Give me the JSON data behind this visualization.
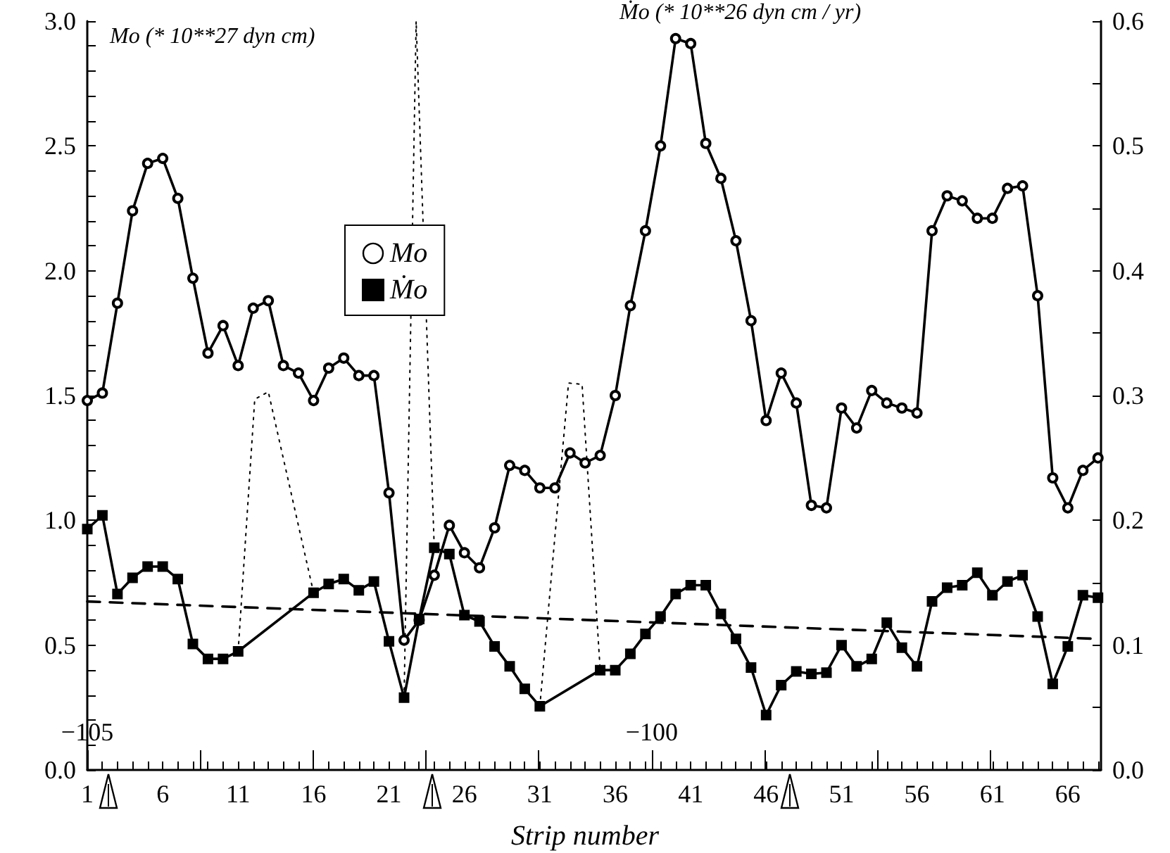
{
  "chart_data": {
    "type": "line",
    "xlabel": "Strip number",
    "ylabel": "Mo (* 10**27 dyn cm)",
    "y2label": "Ṁo (* 10**26 dyn cm / yr)",
    "x": [
      1,
      2,
      3,
      4,
      5,
      6,
      7,
      8,
      9,
      10,
      11,
      12,
      13,
      14,
      15,
      16,
      17,
      18,
      19,
      20,
      21,
      22,
      23,
      24,
      25,
      26,
      27,
      28,
      29,
      30,
      31,
      32,
      33,
      34,
      35,
      36,
      37,
      38,
      39,
      40,
      41,
      42,
      43,
      44,
      45,
      46,
      47,
      48,
      49,
      50,
      51,
      52,
      53,
      54,
      55,
      56,
      57,
      58,
      59,
      60,
      61,
      62,
      63,
      64,
      65,
      66,
      67,
      68
    ],
    "series": [
      {
        "name": "Mo",
        "color": "#000000",
        "marker": "circle",
        "values": [
          1.48,
          1.51,
          1.87,
          2.24,
          2.43,
          2.45,
          2.29,
          1.97,
          1.67,
          1.78,
          1.62,
          1.85,
          1.88,
          1.62,
          1.59,
          1.48,
          1.61,
          1.65,
          1.58,
          1.58,
          1.11,
          0.52,
          0.6,
          0.78,
          0.98,
          0.87,
          0.81,
          0.97,
          1.22,
          1.2,
          1.13,
          1.13,
          1.27,
          1.23,
          1.26,
          1.5,
          1.86,
          2.16,
          2.5,
          2.93,
          2.91,
          2.51,
          2.37,
          2.12,
          1.8,
          1.4,
          1.59,
          1.47,
          1.06,
          1.05,
          1.45,
          1.37,
          1.52,
          1.47,
          1.45,
          1.43,
          2.16,
          2.3,
          2.28,
          2.21,
          2.21,
          2.33,
          2.34,
          1.9,
          1.17,
          1.05,
          1.2,
          1.25
        ]
      },
      {
        "name": "Ṁo",
        "color": "#000000",
        "marker": "square",
        "axis": "y2",
        "x": [
          1,
          2,
          3,
          4,
          5,
          6,
          7,
          8,
          9,
          10,
          11,
          16,
          17,
          18,
          19,
          20,
          21,
          22,
          23,
          24,
          25,
          26,
          27,
          28,
          29,
          30,
          31,
          35,
          36,
          37,
          38,
          39,
          40,
          41,
          42,
          43,
          44,
          45,
          46,
          47,
          48,
          49,
          50,
          51,
          52,
          53,
          54,
          55,
          56,
          57,
          58,
          59,
          60,
          61,
          62,
          63,
          64,
          65,
          66,
          67,
          68
        ],
        "values": [
          0.193,
          0.204,
          0.141,
          0.154,
          0.163,
          0.163,
          0.153,
          0.101,
          0.089,
          0.089,
          0.095,
          0.142,
          0.149,
          0.153,
          0.144,
          0.151,
          0.103,
          0.058,
          0.121,
          0.178,
          0.173,
          0.124,
          0.119,
          0.099,
          0.083,
          0.065,
          0.051,
          0.08,
          0.08,
          0.093,
          0.109,
          0.123,
          0.141,
          0.148,
          0.148,
          0.125,
          0.105,
          0.082,
          0.044,
          0.068,
          0.079,
          0.077,
          0.078,
          0.1,
          0.083,
          0.089,
          0.118,
          0.098,
          0.083,
          0.135,
          0.146,
          0.148,
          0.158,
          0.14,
          0.151,
          0.156,
          0.123,
          0.069,
          0.099,
          0.14,
          0.138
        ]
      },
      {
        "color": "#000000",
        "marker": "none",
        "line_style": "dashed",
        "axis": "y2",
        "x": [
          1,
          68
        ],
        "values": [
          0.135,
          0.105
        ]
      },
      {
        "color": "#000000",
        "marker": "none",
        "line_style": "dotted",
        "axis": "y2",
        "x": [
          11,
          12.1,
          13,
          16
        ],
        "values": [
          0.095,
          0.297,
          0.303,
          0.142
        ]
      },
      {
        "color": "#000000",
        "marker": "none",
        "line_style": "dotted",
        "axis": "y2",
        "x": [
          22,
          22.8,
          24
        ],
        "values": [
          0.058,
          0.6,
          0.178
        ]
      },
      {
        "color": "#000000",
        "marker": "none",
        "line_style": "dotted",
        "axis": "y2",
        "x": [
          31,
          32.9,
          33.8,
          35
        ],
        "values": [
          0.051,
          0.31,
          0.309,
          0.08
        ]
      }
    ],
    "xlim": [
      1,
      68.2
    ],
    "xticks": [
      1,
      {
        "value": 2,
        "label": null
      },
      {
        "value": 3,
        "label": null
      },
      {
        "value": 4,
        "label": null
      },
      {
        "value": 5,
        "label": null
      },
      6,
      {
        "value": 7,
        "label": null
      },
      {
        "value": 8,
        "label": null
      },
      {
        "value": 9,
        "label": null
      },
      {
        "value": 10,
        "label": null
      },
      11,
      {
        "value": 12,
        "label": null
      },
      {
        "value": 13,
        "label": null
      },
      {
        "value": 14,
        "label": null
      },
      {
        "value": 15,
        "label": null
      },
      16,
      {
        "value": 17,
        "label": null
      },
      {
        "value": 18,
        "label": null
      },
      {
        "value": 19,
        "label": null
      },
      {
        "value": 20,
        "label": null
      },
      21,
      {
        "value": 22,
        "label": null
      },
      {
        "value": 23,
        "label": null
      },
      {
        "value": 24,
        "label": null
      },
      {
        "value": 25,
        "label": null
      },
      26,
      {
        "value": 27,
        "label": null
      },
      {
        "value": 28,
        "label": null
      },
      {
        "value": 29,
        "label": null
      },
      {
        "value": 30,
        "label": null
      },
      31,
      {
        "value": 32,
        "label": null
      },
      {
        "value": 33,
        "label": null
      },
      {
        "value": 34,
        "label": null
      },
      {
        "value": 35,
        "label": null
      },
      36,
      {
        "value": 37,
        "label": null
      },
      {
        "value": 38,
        "label": null
      },
      {
        "value": 39,
        "label": null
      },
      {
        "value": 40,
        "label": null
      },
      41,
      {
        "value": 42,
        "label": null
      },
      {
        "value": 43,
        "label": null
      },
      {
        "value": 44,
        "label": null
      },
      {
        "value": 45,
        "label": null
      },
      46,
      {
        "value": 47,
        "label": null
      },
      {
        "value": 48,
        "label": null
      },
      {
        "value": 49,
        "label": null
      },
      {
        "value": 50,
        "label": null
      },
      51,
      {
        "value": 52,
        "label": null
      },
      {
        "value": 53,
        "label": null
      },
      {
        "value": 54,
        "label": null
      },
      {
        "value": 55,
        "label": null
      },
      56,
      {
        "value": 57,
        "label": null
      },
      {
        "value": 58,
        "label": null
      },
      {
        "value": 59,
        "label": null
      },
      {
        "value": 60,
        "label": null
      },
      61,
      {
        "value": 62,
        "label": null
      },
      {
        "value": 63,
        "label": null
      },
      {
        "value": 64,
        "label": null
      },
      {
        "value": 65,
        "label": null
      },
      66,
      {
        "value": 67,
        "label": null
      },
      {
        "value": 68,
        "label": null
      }
    ],
    "x2lim": [
      -105,
      -96.02
    ],
    "x2ticks": [
      {
        "value": -105,
        "label": "−105"
      },
      {
        "value": -104,
        "label": null
      },
      {
        "value": -103,
        "label": null
      },
      {
        "value": -102,
        "label": null
      },
      {
        "value": -101,
        "label": null
      },
      {
        "value": -100,
        "label": "−100"
      },
      {
        "value": -99,
        "label": null
      },
      {
        "value": -98,
        "label": null
      },
      {
        "value": -97,
        "label": null
      }
    ],
    "ylim": [
      0,
      3
    ],
    "yticks": [
      {
        "value": 0,
        "label": "0.0"
      },
      {
        "value": 0.1,
        "label": null
      },
      {
        "value": 0.2,
        "label": null
      },
      {
        "value": 0.3,
        "label": null
      },
      {
        "value": 0.4,
        "label": null
      },
      {
        "value": 0.5,
        "label": "0.5"
      },
      {
        "value": 0.6,
        "label": null
      },
      {
        "value": 0.7,
        "label": null
      },
      {
        "value": 0.8,
        "label": null
      },
      {
        "value": 0.9,
        "label": null
      },
      {
        "value": 1,
        "label": "1.0"
      },
      {
        "value": 1.1,
        "label": null
      },
      {
        "value": 1.2,
        "label": null
      },
      {
        "value": 1.3,
        "label": null
      },
      {
        "value": 1.4,
        "label": null
      },
      {
        "value": 1.5,
        "label": "1.5"
      },
      {
        "value": 1.6,
        "label": null
      },
      {
        "value": 1.7,
        "label": null
      },
      {
        "value": 1.8,
        "label": null
      },
      {
        "value": 1.9,
        "label": null
      },
      {
        "value": 2,
        "label": "2.0"
      },
      {
        "value": 2.1,
        "label": null
      },
      {
        "value": 2.2,
        "label": null
      },
      {
        "value": 2.3,
        "label": null
      },
      {
        "value": 2.4,
        "label": null
      },
      {
        "value": 2.5,
        "label": "2.5"
      },
      {
        "value": 2.6,
        "label": null
      },
      {
        "value": 2.7,
        "label": null
      },
      {
        "value": 2.8,
        "label": null
      },
      {
        "value": 2.9,
        "label": null
      },
      {
        "value": 3,
        "label": "3.0"
      }
    ],
    "y2lim": [
      0,
      0.6
    ],
    "y2ticks": [
      {
        "value": 0,
        "label": "0.0"
      },
      {
        "value": 0.05,
        "label": null
      },
      {
        "value": 0.1,
        "label": "0.1"
      },
      {
        "value": 0.15,
        "label": null
      },
      {
        "value": 0.2,
        "label": "0.2"
      },
      {
        "value": 0.25,
        "label": null
      },
      {
        "value": 0.3,
        "label": "0.3"
      },
      {
        "value": 0.35,
        "label": null
      },
      {
        "value": 0.4,
        "label": "0.4"
      },
      {
        "value": 0.45,
        "label": null
      },
      {
        "value": 0.5,
        "label": "0.5"
      },
      {
        "value": 0.55,
        "label": null
      },
      {
        "value": 0.6,
        "label": "0.6"
      }
    ],
    "grid": false,
    "legend": "top left"
  }
}
